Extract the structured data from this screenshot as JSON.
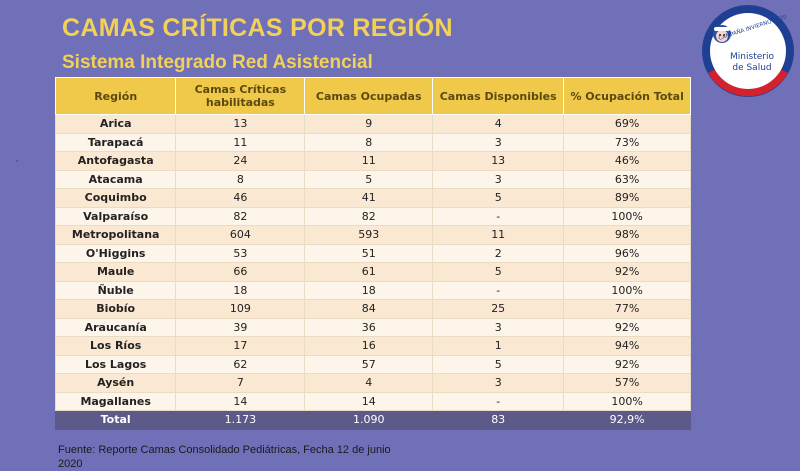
{
  "header": {
    "title": "CAMAS CRÍTICAS POR REGIÓN",
    "subtitle": "Sistema Integrado Red Asistencial"
  },
  "table": {
    "columns": [
      "Región",
      "Camas Críticas habilitadas",
      "Camas Ocupadas",
      "Camas Disponibles",
      "% Ocupación Total"
    ],
    "rows": [
      [
        "Arica",
        "13",
        "9",
        "4",
        "69%"
      ],
      [
        "Tarapacá",
        "11",
        "8",
        "3",
        "73%"
      ],
      [
        "Antofagasta",
        "24",
        "11",
        "13",
        "46%"
      ],
      [
        "Atacama",
        "8",
        "5",
        "3",
        "63%"
      ],
      [
        "Coquimbo",
        "46",
        "41",
        "5",
        "89%"
      ],
      [
        "Valparaíso",
        "82",
        "82",
        "-",
        "100%"
      ],
      [
        "Metropolitana",
        "604",
        "593",
        "11",
        "98%"
      ],
      [
        "O'Higgins",
        "53",
        "51",
        "2",
        "96%"
      ],
      [
        "Maule",
        "66",
        "61",
        "5",
        "92%"
      ],
      [
        "Ñuble",
        "18",
        "18",
        "-",
        "100%"
      ],
      [
        "Biobío",
        "109",
        "84",
        "25",
        "77%"
      ],
      [
        "Araucanía",
        "39",
        "36",
        "3",
        "92%"
      ],
      [
        "Los Ríos",
        "17",
        "16",
        "1",
        "94%"
      ],
      [
        "Los Lagos",
        "62",
        "57",
        "5",
        "92%"
      ],
      [
        "Aysén",
        "7",
        "4",
        "3",
        "57%"
      ],
      [
        "Magallanes",
        "14",
        "14",
        "-",
        "100%"
      ]
    ],
    "total": [
      "Total",
      "1.173",
      "1.090",
      "83",
      "92,9%"
    ]
  },
  "logo": {
    "campaign_text": "CAMPAÑA INVIERNO 2020",
    "line1": "Ministerio",
    "line2": "de Salud"
  },
  "footer": {
    "line1": "Fuente: Reporte Camas Consolidado Pediátricas, Fecha 12 de junio",
    "line2": "2020"
  },
  "colors": {
    "background": "#7070b8",
    "title": "#f1d158",
    "header_fill": "#f0c84a",
    "total_fill": "#5d5a8a"
  }
}
